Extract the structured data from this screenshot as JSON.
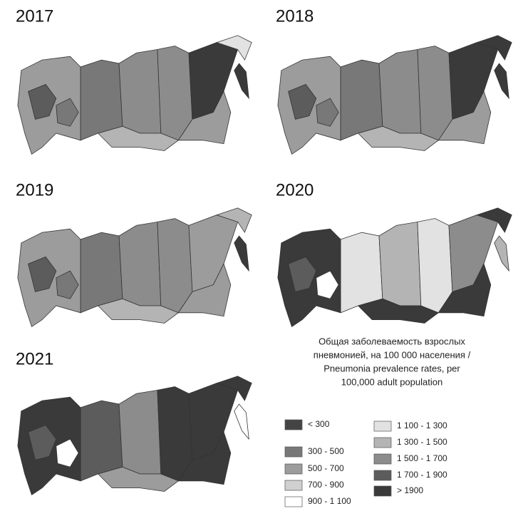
{
  "maps": [
    {
      "year": "2017"
    },
    {
      "year": "2018"
    },
    {
      "year": "2019"
    },
    {
      "year": "2020"
    },
    {
      "year": "2021"
    }
  ],
  "legend": {
    "title": [
      "Общая заболеваемость взрослых",
      "пневмонией, на 100 000 населения /",
      "Pneumonia prevalence rates, per",
      "100,000 adult population"
    ],
    "items": [
      {
        "label": "< 300",
        "color": "#444444"
      },
      {
        "label": "300 - 500",
        "color": "#787878"
      },
      {
        "label": "500 - 700",
        "color": "#9c9c9c"
      },
      {
        "label": "700 - 900",
        "color": "#d0d0d0"
      },
      {
        "label": "900 - 1 100",
        "color": "#ffffff"
      },
      {
        "label": "1 100 - 1 300",
        "color": "#e2e2e2"
      },
      {
        "label": "1 300 - 1 500",
        "color": "#b4b4b4"
      },
      {
        "label": "1 500 - 1 700",
        "color": "#8c8c8c"
      },
      {
        "label": "1 700 - 1 900",
        "color": "#5c5c5c"
      },
      {
        "label": "> 1900",
        "color": "#3a3a3a"
      }
    ]
  }
}
